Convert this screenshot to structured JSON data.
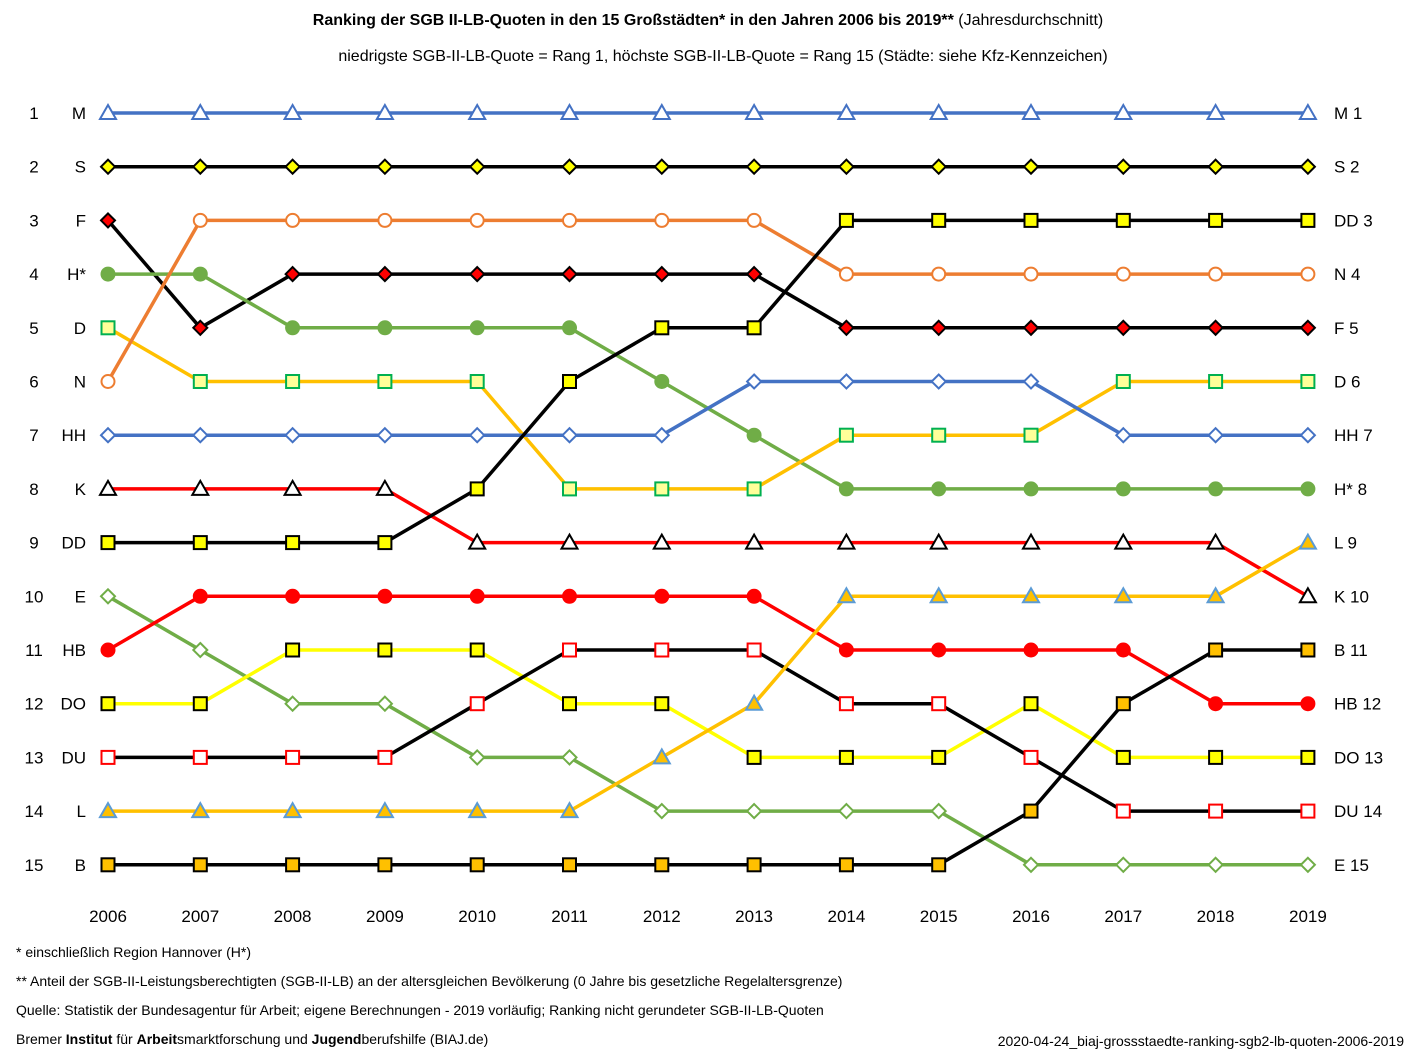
{
  "title_bold": "Ranking der SGB II-LB-Quoten in den 15 Großstädten* in den Jahren 2006 bis 2019**",
  "title_normal": "(Jahresdurchschnitt)",
  "subtitle": "niedrigste SGB-II-LB-Quote = Rang 1, höchste SGB-II-LB-Quote = Rang 15 (Städte: siehe Kfz-Kennzeichen)",
  "footnotes": {
    "f1": "*   einschließlich Region Hannover (H*)",
    "f2": "** Anteil der SGB-II-Leistungsberechtigten (SGB-II-LB) an der altersgleichen Bevölkerung (0 Jahre bis gesetzliche Regelaltersgrenze)",
    "f3": "Quelle: Statistik der Bundesagentur für Arbeit; eigene Berechnungen - 2019 vorläufig; Ranking nicht gerundeter SGB-II-LB-Quoten",
    "f4": {
      "p1": "Bremer ",
      "b1": "Institut",
      "p2": " für ",
      "b2": "Arbeit",
      "p3": "smarktforschung und ",
      "b3": "Jugend",
      "p4": "berufshilfe (BIAJ.de)"
    }
  },
  "file_reference": "2020-04-24_biaj-grossstaedte-ranking-sgb2-lb-quoten-2006-2019",
  "chart_data": {
    "type": "line",
    "x": [
      2006,
      2007,
      2008,
      2009,
      2010,
      2011,
      2012,
      2013,
      2014,
      2015,
      2016,
      2017,
      2018,
      2019
    ],
    "ylim": [
      1,
      15
    ],
    "y_inverted": true,
    "y_ticks": [
      1,
      2,
      3,
      4,
      5,
      6,
      7,
      8,
      9,
      10,
      11,
      12,
      13,
      14,
      15
    ],
    "left_labels": [
      "M",
      "S",
      "F",
      "H*",
      "D",
      "N",
      "HH",
      "K",
      "DD",
      "E",
      "HB",
      "DO",
      "DU",
      "L",
      "B"
    ],
    "right_labels": [
      "M 1",
      "S 2",
      "DD 3",
      "N 4",
      "F 5",
      "D 6",
      "HH 7",
      "H* 8",
      "L 9",
      "K 10",
      "B 11",
      "HB 12",
      "DO 13",
      "DU 14",
      "E 15"
    ],
    "series": [
      {
        "name": "M",
        "color": "#4472C4",
        "marker": "triangle",
        "fill": "#ffffff",
        "edge": "#4472C4",
        "values": [
          1,
          1,
          1,
          1,
          1,
          1,
          1,
          1,
          1,
          1,
          1,
          1,
          1,
          1
        ]
      },
      {
        "name": "S",
        "color": "#000000",
        "marker": "diamond",
        "fill": "#FFFF00",
        "edge": "#000000",
        "values": [
          2,
          2,
          2,
          2,
          2,
          2,
          2,
          2,
          2,
          2,
          2,
          2,
          2,
          2
        ]
      },
      {
        "name": "F",
        "color": "#000000",
        "marker": "diamond",
        "fill": "#FF0000",
        "edge": "#000000",
        "values": [
          3,
          5,
          4,
          4,
          4,
          4,
          4,
          4,
          5,
          5,
          5,
          5,
          5,
          5
        ]
      },
      {
        "name": "H*",
        "color": "#70AD47",
        "marker": "circle",
        "fill": "#70AD47",
        "edge": "#70AD47",
        "values": [
          4,
          4,
          5,
          5,
          5,
          5,
          6,
          7,
          8,
          8,
          8,
          8,
          8,
          8
        ]
      },
      {
        "name": "D",
        "color": "#FFC000",
        "marker": "square",
        "fill": "#FFFF99",
        "edge": "#00B050",
        "values": [
          5,
          6,
          6,
          6,
          6,
          8,
          8,
          8,
          7,
          7,
          7,
          6,
          6,
          6
        ]
      },
      {
        "name": "N",
        "color": "#ED7D31",
        "marker": "circle",
        "fill": "#ffffff",
        "edge": "#ED7D31",
        "values": [
          6,
          3,
          3,
          3,
          3,
          3,
          3,
          3,
          4,
          4,
          4,
          4,
          4,
          4
        ]
      },
      {
        "name": "HH",
        "color": "#4472C4",
        "marker": "diamond",
        "fill": "#ffffff",
        "edge": "#4472C4",
        "values": [
          7,
          7,
          7,
          7,
          7,
          7,
          7,
          6,
          6,
          6,
          6,
          7,
          7,
          7
        ]
      },
      {
        "name": "K",
        "color": "#FF0000",
        "marker": "triangle",
        "fill": "#ffffff",
        "edge": "#000000",
        "values": [
          8,
          8,
          8,
          8,
          9,
          9,
          9,
          9,
          9,
          9,
          9,
          9,
          9,
          10
        ]
      },
      {
        "name": "DD",
        "color": "#000000",
        "marker": "square",
        "fill": "#FFFF00",
        "edge": "#000000",
        "values": [
          9,
          9,
          9,
          9,
          8,
          6,
          5,
          5,
          3,
          3,
          3,
          3,
          3,
          3
        ]
      },
      {
        "name": "E",
        "color": "#70AD47",
        "marker": "diamond",
        "fill": "#ffffff",
        "edge": "#70AD47",
        "values": [
          10,
          11,
          12,
          12,
          13,
          13,
          14,
          14,
          14,
          14,
          15,
          15,
          15,
          15
        ]
      },
      {
        "name": "HB",
        "color": "#FF0000",
        "marker": "circle",
        "fill": "#FF0000",
        "edge": "#FF0000",
        "values": [
          11,
          10,
          10,
          10,
          10,
          10,
          10,
          10,
          11,
          11,
          11,
          11,
          12,
          12
        ]
      },
      {
        "name": "DO",
        "color": "#FFFF00",
        "marker": "square",
        "fill": "#FFFF00",
        "edge": "#000000",
        "values": [
          12,
          12,
          11,
          11,
          11,
          12,
          12,
          13,
          13,
          13,
          12,
          13,
          13,
          13
        ]
      },
      {
        "name": "DU",
        "color": "#000000",
        "marker": "square",
        "fill": "#ffffff",
        "edge": "#FF0000",
        "values": [
          13,
          13,
          13,
          13,
          12,
          11,
          11,
          11,
          12,
          12,
          13,
          14,
          14,
          14
        ]
      },
      {
        "name": "L",
        "color": "#FFC000",
        "marker": "triangle",
        "fill": "#FFC000",
        "edge": "#5B9BD5",
        "values": [
          14,
          14,
          14,
          14,
          14,
          14,
          13,
          12,
          10,
          10,
          10,
          10,
          10,
          9
        ]
      },
      {
        "name": "B",
        "color": "#000000",
        "marker": "square",
        "fill": "#FFC000",
        "edge": "#000000",
        "values": [
          15,
          15,
          15,
          15,
          15,
          15,
          15,
          15,
          15,
          15,
          14,
          12,
          11,
          11
        ]
      }
    ]
  }
}
